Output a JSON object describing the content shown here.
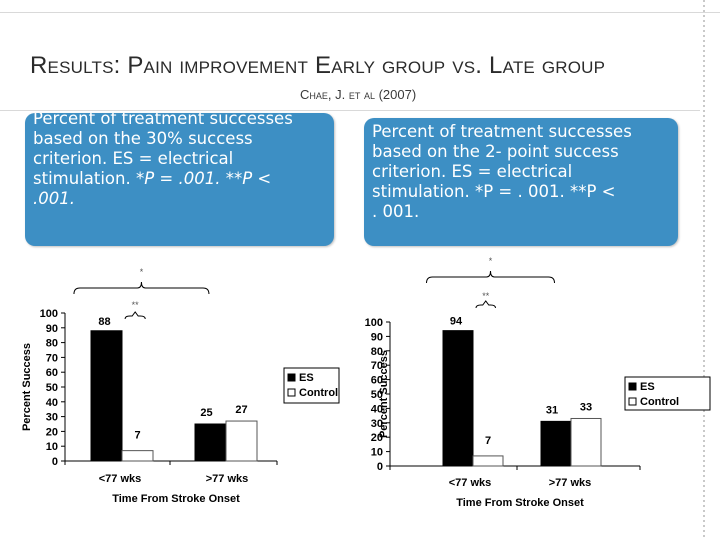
{
  "slide": {
    "title": "Results: Pain improvement Early group vs. Late group",
    "citation": "Chae, J. et al (2007)",
    "callout_left": {
      "line1": "Percent of treatment successes",
      "line2": "based on the 30% success",
      "line3": "criterion. ES = electrical",
      "line4_a": "stimulation. ",
      "line4_b": "*P = .001. **P <",
      "line5": ".001."
    },
    "callout_right": {
      "line1": "Percent of treatment successes",
      "line2": "based on the 2- point success",
      "line3": "criterion. ES = electrical",
      "line4": "stimulation. *P = . 001. **P <",
      "line5": ". 001."
    }
  },
  "colors": {
    "callout_bg": "#3d8fc4",
    "es_bar": "#000000",
    "control_bar": "#ffffff",
    "title_text": "#2b2b2b"
  },
  "chart_data": [
    {
      "type": "bar",
      "title": "",
      "xlabel": "Time From Stroke Onset",
      "ylabel": "Percent Success",
      "ylim": [
        0,
        100
      ],
      "yticks": [
        0,
        10,
        20,
        30,
        40,
        50,
        60,
        70,
        80,
        90,
        100
      ],
      "categories": [
        "<77 wks",
        ">77 wks"
      ],
      "series": [
        {
          "name": "ES",
          "values": [
            88,
            25
          ]
        },
        {
          "name": "Control",
          "values": [
            7,
            27
          ]
        }
      ],
      "annotations": {
        "within_group": "**",
        "between_group": "*"
      },
      "legend": "right"
    },
    {
      "type": "bar",
      "title": "",
      "xlabel": "Time From Stroke Onset",
      "ylabel": "Percent Success",
      "ylim": [
        0,
        100
      ],
      "yticks": [
        0,
        10,
        20,
        30,
        40,
        50,
        60,
        70,
        80,
        90,
        100
      ],
      "categories": [
        "<77 wks",
        ">77 wks"
      ],
      "series": [
        {
          "name": "ES",
          "values": [
            94,
            31
          ]
        },
        {
          "name": "Control",
          "values": [
            7,
            33
          ]
        }
      ],
      "annotations": {
        "within_group": "**",
        "between_group": "*"
      },
      "legend": "right"
    }
  ]
}
